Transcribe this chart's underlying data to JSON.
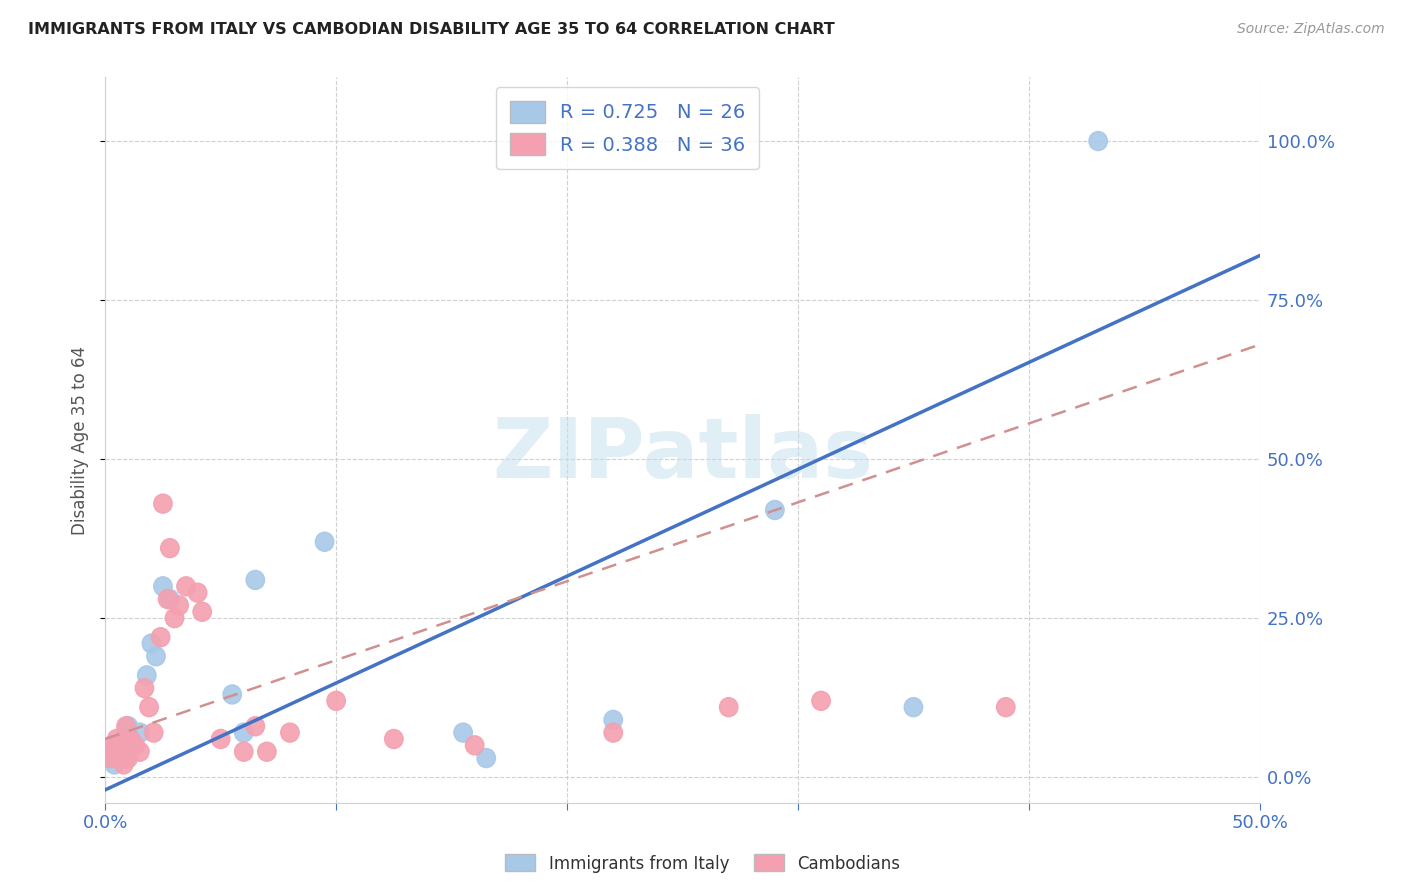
{
  "title": "IMMIGRANTS FROM ITALY VS CAMBODIAN DISABILITY AGE 35 TO 64 CORRELATION CHART",
  "source": "Source: ZipAtlas.com",
  "ylabel": "Disability Age 35 to 64",
  "xlim": [
    0.0,
    0.5
  ],
  "ylim": [
    0.0,
    1.1
  ],
  "ytick_labels": [
    "0.0%",
    "25.0%",
    "50.0%",
    "75.0%",
    "100.0%"
  ],
  "ytick_vals": [
    0.0,
    0.25,
    0.5,
    0.75,
    1.0
  ],
  "xtick_labels": [
    "0.0%",
    "",
    "",
    "",
    "",
    "50.0%"
  ],
  "xtick_vals": [
    0.0,
    0.1,
    0.2,
    0.3,
    0.4,
    0.5
  ],
  "italy_R": 0.725,
  "italy_N": 26,
  "cambodia_R": 0.388,
  "cambodia_N": 36,
  "italy_color": "#a8c8e8",
  "cambodia_color": "#f4a0b0",
  "italy_line_color": "#4472c4",
  "cambodia_line_color": "#d09090",
  "italy_line_x": [
    0.0,
    0.5
  ],
  "italy_line_y": [
    -0.02,
    0.82
  ],
  "cambodia_line_x": [
    0.0,
    0.5
  ],
  "cambodia_line_y": [
    0.06,
    0.68
  ],
  "watermark_text": "ZIPatlas",
  "italy_scatter_x": [
    0.002,
    0.003,
    0.004,
    0.005,
    0.006,
    0.007,
    0.008,
    0.009,
    0.01,
    0.012,
    0.015,
    0.018,
    0.02,
    0.022,
    0.025,
    0.028,
    0.055,
    0.06,
    0.065,
    0.095,
    0.155,
    0.165,
    0.22,
    0.29,
    0.35,
    0.43
  ],
  "italy_scatter_y": [
    0.03,
    0.04,
    0.02,
    0.03,
    0.05,
    0.04,
    0.06,
    0.03,
    0.08,
    0.05,
    0.07,
    0.16,
    0.21,
    0.19,
    0.3,
    0.28,
    0.13,
    0.07,
    0.31,
    0.37,
    0.07,
    0.03,
    0.09,
    0.42,
    0.11,
    1.0
  ],
  "cambodia_scatter_x": [
    0.002,
    0.003,
    0.004,
    0.005,
    0.006,
    0.007,
    0.008,
    0.009,
    0.01,
    0.011,
    0.013,
    0.015,
    0.017,
    0.019,
    0.021,
    0.024,
    0.027,
    0.03,
    0.032,
    0.035,
    0.04,
    0.042,
    0.025,
    0.028,
    0.05,
    0.06,
    0.065,
    0.07,
    0.08,
    0.1,
    0.125,
    0.16,
    0.22,
    0.27,
    0.31,
    0.39
  ],
  "cambodia_scatter_y": [
    0.03,
    0.05,
    0.04,
    0.06,
    0.03,
    0.05,
    0.02,
    0.08,
    0.03,
    0.06,
    0.05,
    0.04,
    0.14,
    0.11,
    0.07,
    0.22,
    0.28,
    0.25,
    0.27,
    0.3,
    0.29,
    0.26,
    0.43,
    0.36,
    0.06,
    0.04,
    0.08,
    0.04,
    0.07,
    0.12,
    0.06,
    0.05,
    0.07,
    0.11,
    0.12,
    0.11
  ]
}
